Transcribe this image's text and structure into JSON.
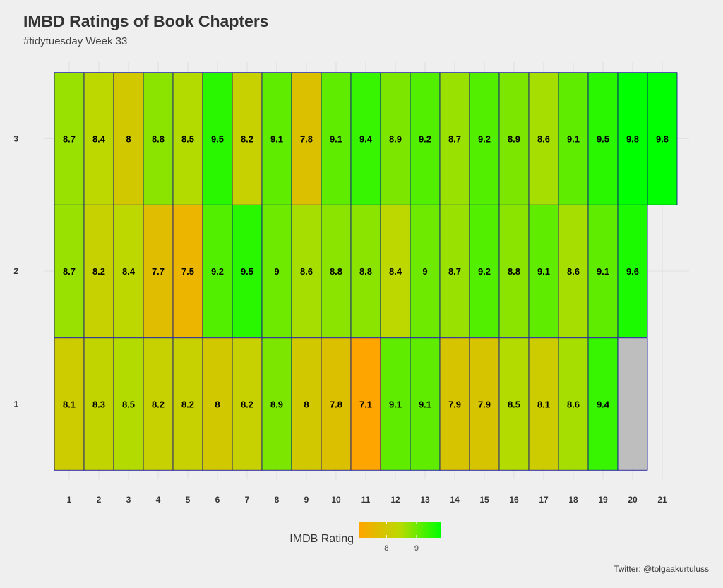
{
  "title": "IMBD Ratings of Book Chapters",
  "subtitle": "#tidytuesday Week 33",
  "caption": "Twitter: @tolgaakurtuluss",
  "legend": {
    "title": "IMDB Rating",
    "ticks": [
      8,
      9
    ],
    "colors": {
      "low": "#ffa500",
      "mid": "#bada00",
      "high": "#00ff00"
    },
    "range": [
      7.1,
      9.8
    ]
  },
  "colors": {
    "background": "#efefef",
    "grid": "#d3d3d3",
    "cell_border": "#00008b",
    "missing": "#bebebe"
  },
  "chart_data": {
    "type": "heatmap",
    "title": "IMBD Ratings of Book Chapters",
    "subtitle": "#tidytuesday Week 33",
    "x_ticks": [
      1,
      2,
      3,
      4,
      5,
      6,
      7,
      8,
      9,
      10,
      11,
      12,
      13,
      14,
      15,
      16,
      17,
      18,
      19,
      20,
      21
    ],
    "y_ticks": [
      1,
      2,
      3
    ],
    "xlim": [
      1,
      21
    ],
    "ylim": [
      1,
      3
    ],
    "grid": true,
    "legend_position": "bottom",
    "rows": [
      {
        "y": 1,
        "values": [
          8.1,
          8.3,
          8.5,
          8.2,
          8.2,
          8,
          8.2,
          8.9,
          8,
          7.8,
          7.1,
          9.1,
          9.1,
          7.9,
          7.9,
          8.5,
          8.1,
          8.6,
          9.4,
          null
        ]
      },
      {
        "y": 2,
        "values": [
          8.7,
          8.2,
          8.4,
          7.7,
          7.5,
          9.2,
          9.5,
          9,
          8.6,
          8.8,
          8.8,
          8.4,
          9,
          8.7,
          9.2,
          8.8,
          9.1,
          8.6,
          9.1,
          9.6
        ]
      },
      {
        "y": 3,
        "values": [
          8.7,
          8.4,
          8,
          8.8,
          8.5,
          9.5,
          8.2,
          9.1,
          7.8,
          9.1,
          9.4,
          8.9,
          9.2,
          8.7,
          9.2,
          8.9,
          8.6,
          9.1,
          9.5,
          9.8,
          9.8
        ]
      }
    ]
  }
}
